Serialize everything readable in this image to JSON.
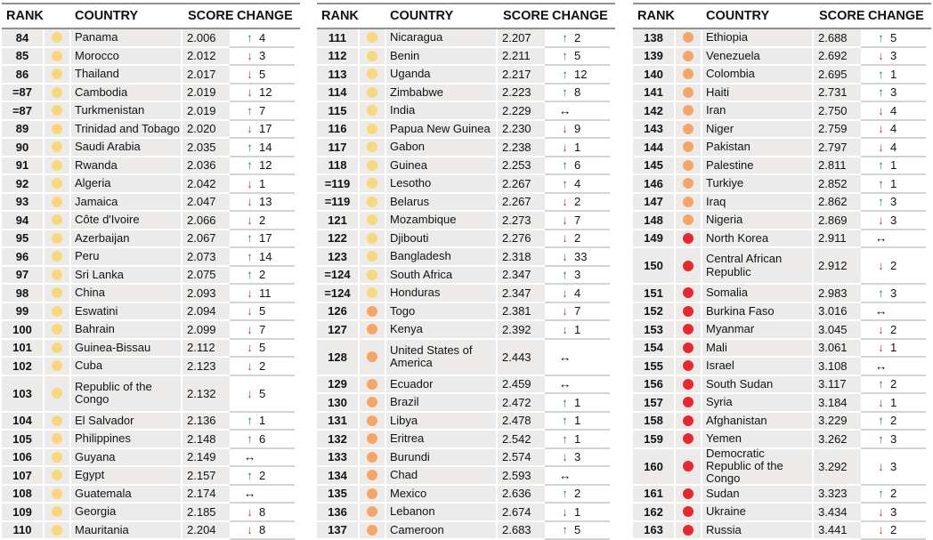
{
  "columns": {
    "rank": "RANK",
    "country": "COUNTRY",
    "score": "SCORE",
    "change": "CHANGE"
  },
  "icons": {
    "up": "↑",
    "down": "↓",
    "same": "↔"
  },
  "tier_colors": {
    "yellow": "#f8d87c",
    "orange": "#f5a566",
    "red": "#e9272e"
  },
  "change_colors": {
    "up": "#2f7d6c",
    "down": "#bc3c2b",
    "same": "#121212"
  },
  "tables": [
    {
      "name": "ranks-84-110",
      "rows": [
        {
          "rank": "84",
          "tier": "yellow",
          "country": "Panama",
          "score": "2.006",
          "change": {
            "dir": "up",
            "value": "4"
          }
        },
        {
          "rank": "85",
          "tier": "yellow",
          "country": "Morocco",
          "score": "2.012",
          "change": {
            "dir": "down",
            "value": "3"
          }
        },
        {
          "rank": "86",
          "tier": "yellow",
          "country": "Thailand",
          "score": "2.017",
          "change": {
            "dir": "down",
            "value": "5"
          }
        },
        {
          "rank": "=87",
          "tier": "yellow",
          "country": "Cambodia",
          "score": "2.019",
          "change": {
            "dir": "down",
            "value": "12"
          }
        },
        {
          "rank": "=87",
          "tier": "yellow",
          "country": "Turkmenistan",
          "score": "2.019",
          "change": {
            "dir": "up",
            "value": "7"
          }
        },
        {
          "rank": "89",
          "tier": "yellow",
          "country": "Trinidad and Tobago",
          "score": "2.020",
          "change": {
            "dir": "down",
            "value": "17"
          }
        },
        {
          "rank": "90",
          "tier": "yellow",
          "country": "Saudi Arabia",
          "score": "2.035",
          "change": {
            "dir": "up",
            "value": "14"
          }
        },
        {
          "rank": "91",
          "tier": "yellow",
          "country": "Rwanda",
          "score": "2.036",
          "change": {
            "dir": "up",
            "value": "12"
          }
        },
        {
          "rank": "92",
          "tier": "yellow",
          "country": "Algeria",
          "score": "2.042",
          "change": {
            "dir": "down",
            "value": "1"
          }
        },
        {
          "rank": "93",
          "tier": "yellow",
          "country": "Jamaica",
          "score": "2.047",
          "change": {
            "dir": "down",
            "value": "13"
          }
        },
        {
          "rank": "94",
          "tier": "yellow",
          "country": "Côte d'Ivoire",
          "score": "2.066",
          "change": {
            "dir": "down",
            "value": "2"
          }
        },
        {
          "rank": "95",
          "tier": "yellow",
          "country": "Azerbaijan",
          "score": "2.067",
          "change": {
            "dir": "up",
            "value": "17"
          }
        },
        {
          "rank": "96",
          "tier": "yellow",
          "country": "Peru",
          "score": "2.073",
          "change": {
            "dir": "up",
            "value": "14"
          }
        },
        {
          "rank": "97",
          "tier": "yellow",
          "country": "Sri Lanka",
          "score": "2.075",
          "change": {
            "dir": "up",
            "value": "2"
          }
        },
        {
          "rank": "98",
          "tier": "yellow",
          "country": "China",
          "score": "2.093",
          "change": {
            "dir": "down",
            "value": "11"
          }
        },
        {
          "rank": "99",
          "tier": "yellow",
          "country": "Eswatini",
          "score": "2.094",
          "change": {
            "dir": "down",
            "value": "5"
          }
        },
        {
          "rank": "100",
          "tier": "yellow",
          "country": "Bahrain",
          "score": "2.099",
          "change": {
            "dir": "down",
            "value": "7"
          }
        },
        {
          "rank": "101",
          "tier": "yellow",
          "country": "Guinea-Bissau",
          "score": "2.112",
          "change": {
            "dir": "down",
            "value": "5"
          }
        },
        {
          "rank": "102",
          "tier": "yellow",
          "country": "Cuba",
          "score": "2.123",
          "change": {
            "dir": "down",
            "value": "2"
          }
        },
        {
          "rank": "103",
          "tier": "yellow",
          "country": "Republic of the Congo",
          "score": "2.132",
          "change": {
            "dir": "down",
            "value": "5"
          },
          "tall": true
        },
        {
          "rank": "104",
          "tier": "yellow",
          "country": "El Salvador",
          "score": "2.136",
          "change": {
            "dir": "up",
            "value": "1"
          }
        },
        {
          "rank": "105",
          "tier": "yellow",
          "country": "Philippines",
          "score": "2.148",
          "change": {
            "dir": "up",
            "value": "6"
          }
        },
        {
          "rank": "106",
          "tier": "yellow",
          "country": "Guyana",
          "score": "2.149",
          "change": {
            "dir": "same",
            "value": ""
          }
        },
        {
          "rank": "107",
          "tier": "yellow",
          "country": "Egypt",
          "score": "2.157",
          "change": {
            "dir": "up",
            "value": "2"
          }
        },
        {
          "rank": "108",
          "tier": "yellow",
          "country": "Guatemala",
          "score": "2.174",
          "change": {
            "dir": "same",
            "value": ""
          }
        },
        {
          "rank": "109",
          "tier": "yellow",
          "country": "Georgia",
          "score": "2.185",
          "change": {
            "dir": "down",
            "value": "8"
          }
        },
        {
          "rank": "110",
          "tier": "yellow",
          "country": "Mauritania",
          "score": "2.204",
          "change": {
            "dir": "down",
            "value": "8"
          }
        }
      ]
    },
    {
      "name": "ranks-111-137",
      "rows": [
        {
          "rank": "111",
          "tier": "yellow",
          "country": "Nicaragua",
          "score": "2.207",
          "change": {
            "dir": "up",
            "value": "2"
          }
        },
        {
          "rank": "112",
          "tier": "yellow",
          "country": "Benin",
          "score": "2.211",
          "change": {
            "dir": "up",
            "value": "5"
          }
        },
        {
          "rank": "113",
          "tier": "yellow",
          "country": "Uganda",
          "score": "2.217",
          "change": {
            "dir": "up",
            "value": "12"
          }
        },
        {
          "rank": "114",
          "tier": "yellow",
          "country": "Zimbabwe",
          "score": "2.223",
          "change": {
            "dir": "up",
            "value": "8"
          }
        },
        {
          "rank": "115",
          "tier": "yellow",
          "country": "India",
          "score": "2.229",
          "change": {
            "dir": "same",
            "value": ""
          }
        },
        {
          "rank": "116",
          "tier": "yellow",
          "country": "Papua New Guinea",
          "score": "2.230",
          "change": {
            "dir": "down",
            "value": "9"
          }
        },
        {
          "rank": "117",
          "tier": "yellow",
          "country": "Gabon",
          "score": "2.238",
          "change": {
            "dir": "down",
            "value": "1"
          }
        },
        {
          "rank": "118",
          "tier": "yellow",
          "country": "Guinea",
          "score": "2.253",
          "change": {
            "dir": "up",
            "value": "6"
          }
        },
        {
          "rank": "=119",
          "tier": "yellow",
          "country": "Lesotho",
          "score": "2.267",
          "change": {
            "dir": "up",
            "value": "4"
          }
        },
        {
          "rank": "=119",
          "tier": "yellow",
          "country": "Belarus",
          "score": "2.267",
          "change": {
            "dir": "down",
            "value": "2"
          }
        },
        {
          "rank": "121",
          "tier": "yellow",
          "country": "Mozambique",
          "score": "2.273",
          "change": {
            "dir": "down",
            "value": "7"
          }
        },
        {
          "rank": "122",
          "tier": "yellow",
          "country": "Djibouti",
          "score": "2.276",
          "change": {
            "dir": "down",
            "value": "2"
          }
        },
        {
          "rank": "123",
          "tier": "yellow",
          "country": "Bangladesh",
          "score": "2.318",
          "change": {
            "dir": "down",
            "value": "33"
          }
        },
        {
          "rank": "=124",
          "tier": "yellow",
          "country": "South Africa",
          "score": "2.347",
          "change": {
            "dir": "up",
            "value": "3"
          }
        },
        {
          "rank": "=124",
          "tier": "yellow",
          "country": "Honduras",
          "score": "2.347",
          "change": {
            "dir": "down",
            "value": "4"
          }
        },
        {
          "rank": "126",
          "tier": "orange",
          "country": "Togo",
          "score": "2.381",
          "change": {
            "dir": "down",
            "value": "7"
          }
        },
        {
          "rank": "127",
          "tier": "orange",
          "country": "Kenya",
          "score": "2.392",
          "change": {
            "dir": "down",
            "value": "1"
          }
        },
        {
          "rank": "128",
          "tier": "orange",
          "country": "United States of America",
          "score": "2.443",
          "change": {
            "dir": "same",
            "value": ""
          },
          "tall": true
        },
        {
          "rank": "129",
          "tier": "orange",
          "country": "Ecuador",
          "score": "2.459",
          "change": {
            "dir": "same",
            "value": ""
          }
        },
        {
          "rank": "130",
          "tier": "orange",
          "country": "Brazil",
          "score": "2.472",
          "change": {
            "dir": "up",
            "value": "1"
          }
        },
        {
          "rank": "131",
          "tier": "orange",
          "country": "Libya",
          "score": "2.478",
          "change": {
            "dir": "up",
            "value": "1"
          }
        },
        {
          "rank": "132",
          "tier": "orange",
          "country": "Eritrea",
          "score": "2.542",
          "change": {
            "dir": "up",
            "value": "1"
          }
        },
        {
          "rank": "133",
          "tier": "orange",
          "country": "Burundi",
          "score": "2.574",
          "change": {
            "dir": "down",
            "value": "3"
          }
        },
        {
          "rank": "134",
          "tier": "orange",
          "country": "Chad",
          "score": "2.593",
          "change": {
            "dir": "same",
            "value": ""
          }
        },
        {
          "rank": "135",
          "tier": "orange",
          "country": "Mexico",
          "score": "2.636",
          "change": {
            "dir": "up",
            "value": "2"
          }
        },
        {
          "rank": "136",
          "tier": "orange",
          "country": "Lebanon",
          "score": "2.674",
          "change": {
            "dir": "down",
            "value": "1"
          }
        },
        {
          "rank": "137",
          "tier": "orange",
          "country": "Cameroon",
          "score": "2.683",
          "change": {
            "dir": "up",
            "value": "5"
          }
        }
      ]
    },
    {
      "name": "ranks-138-163",
      "rows": [
        {
          "rank": "138",
          "tier": "orange",
          "country": "Ethiopia",
          "score": "2.688",
          "change": {
            "dir": "up",
            "value": "5"
          }
        },
        {
          "rank": "139",
          "tier": "orange",
          "country": "Venezuela",
          "score": "2.692",
          "change": {
            "dir": "down",
            "value": "3"
          }
        },
        {
          "rank": "140",
          "tier": "orange",
          "country": "Colombia",
          "score": "2.695",
          "change": {
            "dir": "up",
            "value": "1"
          }
        },
        {
          "rank": "141",
          "tier": "orange",
          "country": "Haiti",
          "score": "2.731",
          "change": {
            "dir": "up",
            "value": "3"
          }
        },
        {
          "rank": "142",
          "tier": "orange",
          "country": "Iran",
          "score": "2.750",
          "change": {
            "dir": "down",
            "value": "4"
          }
        },
        {
          "rank": "143",
          "tier": "orange",
          "country": "Niger",
          "score": "2.759",
          "change": {
            "dir": "down",
            "value": "4"
          }
        },
        {
          "rank": "144",
          "tier": "orange",
          "country": "Pakistan",
          "score": "2.797",
          "change": {
            "dir": "down",
            "value": "4"
          }
        },
        {
          "rank": "145",
          "tier": "orange",
          "country": "Palestine",
          "score": "2.811",
          "change": {
            "dir": "up",
            "value": "1"
          }
        },
        {
          "rank": "146",
          "tier": "orange",
          "country": "Turkiye",
          "score": "2.852",
          "change": {
            "dir": "up",
            "value": "1"
          }
        },
        {
          "rank": "147",
          "tier": "orange",
          "country": "Iraq",
          "score": "2.862",
          "change": {
            "dir": "up",
            "value": "3"
          }
        },
        {
          "rank": "148",
          "tier": "orange",
          "country": "Nigeria",
          "score": "2.869",
          "change": {
            "dir": "down",
            "value": "3"
          }
        },
        {
          "rank": "149",
          "tier": "red",
          "country": "North Korea",
          "score": "2.911",
          "change": {
            "dir": "same",
            "value": ""
          }
        },
        {
          "rank": "150",
          "tier": "red",
          "country": "Central African Republic",
          "score": "2.912",
          "change": {
            "dir": "down",
            "value": "2"
          },
          "tall": true
        },
        {
          "rank": "151",
          "tier": "red",
          "country": "Somalia",
          "score": "2.983",
          "change": {
            "dir": "up",
            "value": "3"
          }
        },
        {
          "rank": "152",
          "tier": "red",
          "country": "Burkina Faso",
          "score": "3.016",
          "change": {
            "dir": "same",
            "value": ""
          }
        },
        {
          "rank": "153",
          "tier": "red",
          "country": "Myanmar",
          "score": "3.045",
          "change": {
            "dir": "down",
            "value": "2"
          }
        },
        {
          "rank": "154",
          "tier": "red",
          "country": "Mali",
          "score": "3.061",
          "change": {
            "dir": "down",
            "value": "1"
          }
        },
        {
          "rank": "155",
          "tier": "red",
          "country": "Israel",
          "score": "3.108",
          "change": {
            "dir": "same",
            "value": ""
          }
        },
        {
          "rank": "156",
          "tier": "red",
          "country": "South Sudan",
          "score": "3.117",
          "change": {
            "dir": "up",
            "value": "2"
          }
        },
        {
          "rank": "157",
          "tier": "red",
          "country": "Syria",
          "score": "3.184",
          "change": {
            "dir": "down",
            "value": "1"
          }
        },
        {
          "rank": "158",
          "tier": "red",
          "country": "Afghanistan",
          "score": "3.229",
          "change": {
            "dir": "up",
            "value": "2"
          }
        },
        {
          "rank": "159",
          "tier": "red",
          "country": "Yemen",
          "score": "3.262",
          "change": {
            "dir": "up",
            "value": "3"
          }
        },
        {
          "rank": "160",
          "tier": "red",
          "country": "Democratic Republic of the Congo",
          "score": "3.292",
          "change": {
            "dir": "down",
            "value": "3"
          },
          "tall": true
        },
        {
          "rank": "161",
          "tier": "red",
          "country": "Sudan",
          "score": "3.323",
          "change": {
            "dir": "up",
            "value": "2"
          }
        },
        {
          "rank": "162",
          "tier": "red",
          "country": "Ukraine",
          "score": "3.434",
          "change": {
            "dir": "down",
            "value": "3"
          }
        },
        {
          "rank": "163",
          "tier": "red",
          "country": "Russia",
          "score": "3.441",
          "change": {
            "dir": "down",
            "value": "2"
          }
        }
      ]
    }
  ]
}
